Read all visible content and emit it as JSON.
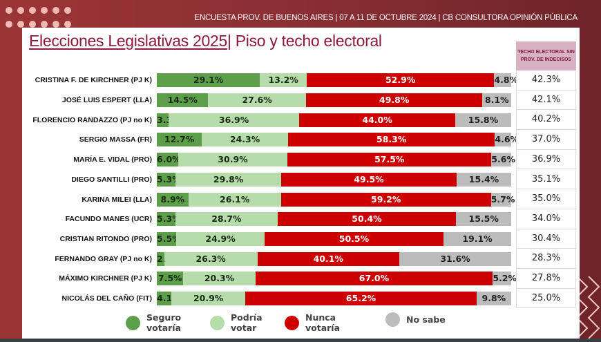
{
  "header": {
    "subtitle": "ENCUESTA PROV. DE BUENOS AIRES | 07 A 11 DE OCTUBRE 2024 | CB CONSULTORA OPINIÓN PÚBLICA",
    "title_part1": "Elecciones Legislativas 2025",
    "title_sep": "|",
    "title_part2": " Piso y techo electoral"
  },
  "colors": {
    "seguro": "#5c9e4a",
    "podria": "#b6dcab",
    "nunca": "#cc0000",
    "nosabe": "#bcbcbc",
    "frame": "#8a2f33",
    "title": "#8e1b3a",
    "table_header": "#d9b3c3"
  },
  "table": {
    "header": "TECHO ELECTORAL SIN PROV. DE INDECISOS"
  },
  "legend": [
    {
      "label": "Seguro\nvotaría",
      "color": "#5c9e4a"
    },
    {
      "label": "Podría\nvotar",
      "color": "#b6dcab"
    },
    {
      "label": "Nunca\nvotaría",
      "color": "#cc0000"
    },
    {
      "label": "No sabe",
      "color": "#bcbcbc"
    }
  ],
  "chart_data": {
    "type": "bar",
    "orientation": "horizontal-stacked",
    "title": "Elecciones Legislativas 2025| Piso y techo electoral",
    "xlabel": "",
    "ylabel": "",
    "xlim": [
      0,
      100
    ],
    "grid": false,
    "legend_position": "bottom",
    "categories": [
      "CRISTINA F. DE KIRCHNER (PJ K)",
      "JOSÉ LUIS ESPERT (LLA)",
      "FLORENCIO RANDAZZO (PJ no K)",
      "SERGIO MASSA (FR)",
      "MARÍA E. VIDAL (PRO)",
      "DIEGO SANTILLI (PRO)",
      "KARINA MILEI (LLA)",
      "FACUNDO MANES (UCR)",
      "CRISTIAN RITONDO (PRO)",
      "FERNANDO GRAY (PJ no K)",
      "MÁXIMO KIRCHNER (PJ K)",
      "NICOLÁS DEL CAÑO (FIT)"
    ],
    "series": [
      {
        "name": "Seguro votaría",
        "values": [
          29.1,
          14.5,
          3.3,
          12.7,
          6.0,
          5.3,
          8.9,
          5.3,
          5.5,
          2.1,
          7.5,
          4.1
        ]
      },
      {
        "name": "Podría votar",
        "values": [
          13.2,
          27.6,
          36.9,
          24.3,
          30.9,
          29.8,
          26.1,
          28.7,
          24.9,
          26.3,
          20.3,
          20.9
        ]
      },
      {
        "name": "Nunca votaría",
        "values": [
          52.9,
          49.8,
          44.0,
          58.3,
          57.5,
          49.5,
          59.2,
          50.4,
          50.5,
          40.1,
          67.0,
          65.2
        ]
      },
      {
        "name": "No sabe",
        "values": [
          4.8,
          8.1,
          15.8,
          4.6,
          5.6,
          15.4,
          5.7,
          15.5,
          19.1,
          31.6,
          5.2,
          9.8
        ]
      }
    ],
    "techo_sin_indecisos": [
      "42.3%",
      "42.1%",
      "40.2%",
      "37.0%",
      "36.9%",
      "35.1%",
      "35.0%",
      "34.0%",
      "30.4%",
      "28.3%",
      "27.8%",
      "25.0%"
    ]
  }
}
